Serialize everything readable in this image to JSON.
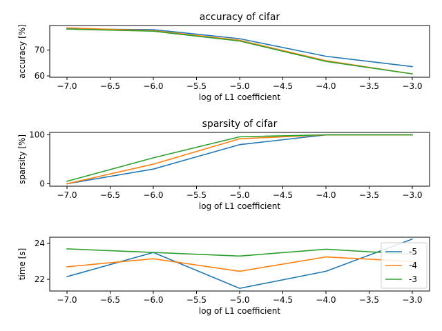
{
  "chart_data": [
    {
      "type": "line",
      "title": "accuracy of cifar",
      "xlabel": "log of L1 coefficient",
      "ylabel": "accuracy [%]",
      "x": [
        -7,
        -6,
        -5,
        -4,
        -3
      ],
      "xlim": [
        -7.2,
        -2.8
      ],
      "ylim": [
        59.5,
        79.5
      ],
      "xticks": [
        "−7.0",
        "−6.5",
        "−6.0",
        "−5.5",
        "−5.0",
        "−4.5",
        "−4.0",
        "−3.5",
        "−3.0"
      ],
      "xtick_values": [
        -7.0,
        -6.5,
        -6.0,
        -5.5,
        -5.0,
        -4.5,
        -4.0,
        -3.5,
        -3.0
      ],
      "yticks": [
        "60",
        "70"
      ],
      "ytick_values": [
        60,
        70
      ],
      "series": [
        {
          "name": "-5",
          "color": "#1f77b4",
          "values": [
            78.2,
            77.9,
            74.4,
            67.6,
            63.6
          ]
        },
        {
          "name": "-4",
          "color": "#ff7f0e",
          "values": [
            78.6,
            77.5,
            73.8,
            65.9,
            60.8
          ]
        },
        {
          "name": "-3",
          "color": "#2ca02c",
          "values": [
            78.1,
            77.3,
            73.5,
            65.6,
            60.8
          ]
        }
      ]
    },
    {
      "type": "line",
      "title": "sparsity of cifar",
      "xlabel": "log of L1 coefficient",
      "ylabel": "sparsity [%]",
      "x": [
        -7,
        -6,
        -5,
        -4,
        -3
      ],
      "xlim": [
        -7.2,
        -2.8
      ],
      "ylim": [
        -5,
        105
      ],
      "xticks": [
        "−7.0",
        "−6.5",
        "−6.0",
        "−5.5",
        "−5.0",
        "−4.5",
        "−4.0",
        "−3.5",
        "−3.0"
      ],
      "xtick_values": [
        -7.0,
        -6.5,
        -6.0,
        -5.5,
        -5.0,
        -4.5,
        -4.0,
        -3.5,
        -3.0
      ],
      "yticks": [
        "0",
        "100"
      ],
      "ytick_values": [
        0,
        100
      ],
      "series": [
        {
          "name": "-5",
          "color": "#1f77b4",
          "values": [
            0,
            30,
            80,
            100,
            100
          ]
        },
        {
          "name": "-4",
          "color": "#ff7f0e",
          "values": [
            0,
            40,
            92,
            100,
            100
          ]
        },
        {
          "name": "-3",
          "color": "#2ca02c",
          "values": [
            5,
            53,
            96,
            100,
            100
          ]
        }
      ]
    },
    {
      "type": "line",
      "title": "",
      "xlabel": "log of L1 coefficient",
      "ylabel": "time [s]",
      "x": [
        -7,
        -6,
        -5,
        -4,
        -3
      ],
      "xlim": [
        -7.2,
        -2.8
      ],
      "ylim": [
        21.35,
        24.35
      ],
      "xticks": [
        "−7.0",
        "−6.5",
        "−6.0",
        "−5.5",
        "−5.0",
        "−4.5",
        "−4.0",
        "−3.5",
        "−3.0"
      ],
      "xtick_values": [
        -7.0,
        -6.5,
        -6.0,
        -5.5,
        -5.0,
        -4.5,
        -4.0,
        -3.5,
        -3.0
      ],
      "yticks": [
        "22",
        "24"
      ],
      "ytick_values": [
        22,
        24
      ],
      "legend": "right",
      "series": [
        {
          "name": "-5",
          "color": "#1f77b4",
          "values": [
            22.15,
            23.5,
            21.5,
            22.45,
            24.25
          ]
        },
        {
          "name": "-4",
          "color": "#ff7f0e",
          "values": [
            22.7,
            23.15,
            22.45,
            23.25,
            23.0
          ]
        },
        {
          "name": "-3",
          "color": "#2ca02c",
          "values": [
            23.7,
            23.5,
            23.3,
            23.68,
            23.4
          ]
        }
      ]
    }
  ]
}
